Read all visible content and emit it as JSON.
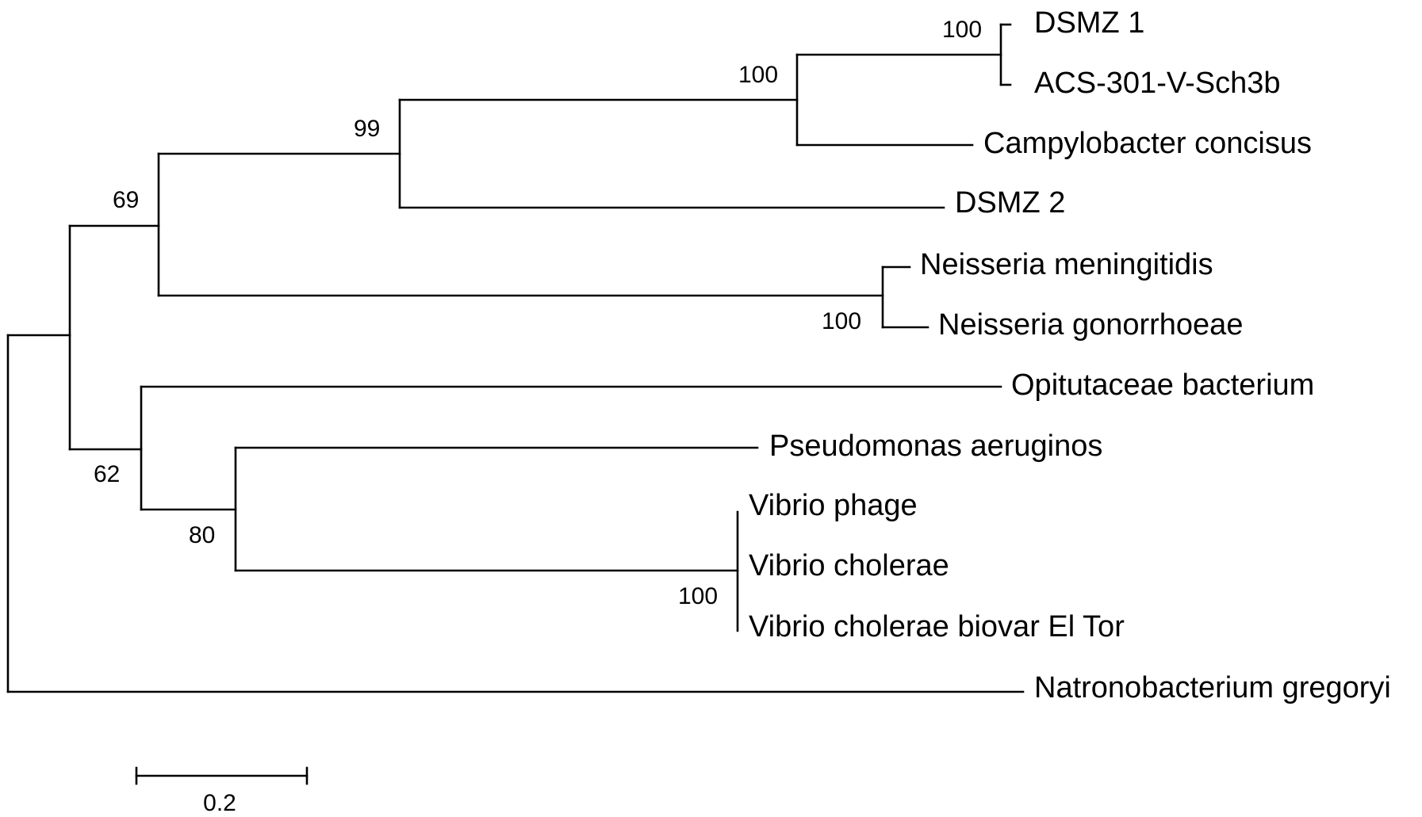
{
  "tree": {
    "leaves": [
      {
        "id": "dsmz1",
        "label": "DSMZ 1"
      },
      {
        "id": "acs",
        "label": "ACS-301-V-Sch3b"
      },
      {
        "id": "campy",
        "label": "Campylobacter concisus"
      },
      {
        "id": "dsmz2",
        "label": "DSMZ 2"
      },
      {
        "id": "nmen",
        "label": "Neisseria meningitidis"
      },
      {
        "id": "ngon",
        "label": "Neisseria gonorrhoeae"
      },
      {
        "id": "opit",
        "label": "Opitutaceae bacterium"
      },
      {
        "id": "pseudo",
        "label": "Pseudomonas aeruginos"
      },
      {
        "id": "vphage",
        "label": "Vibrio phage"
      },
      {
        "id": "vchol",
        "label": "Vibrio cholerae"
      },
      {
        "id": "vcholet",
        "label": "Vibrio cholerae biovar El Tor"
      },
      {
        "id": "natro",
        "label": "Natronobacterium gregoryi"
      }
    ],
    "support_values": {
      "dsmz1_acs": "100",
      "campy_clade": "100",
      "dsmz2_clade": "99",
      "neisseria": "100",
      "upper_clade": "69",
      "vibrio": "100",
      "pseudo_vibrio": "80",
      "lower_clade": "62"
    }
  },
  "scale_bar": {
    "value": 0.2,
    "label": "0.2"
  }
}
